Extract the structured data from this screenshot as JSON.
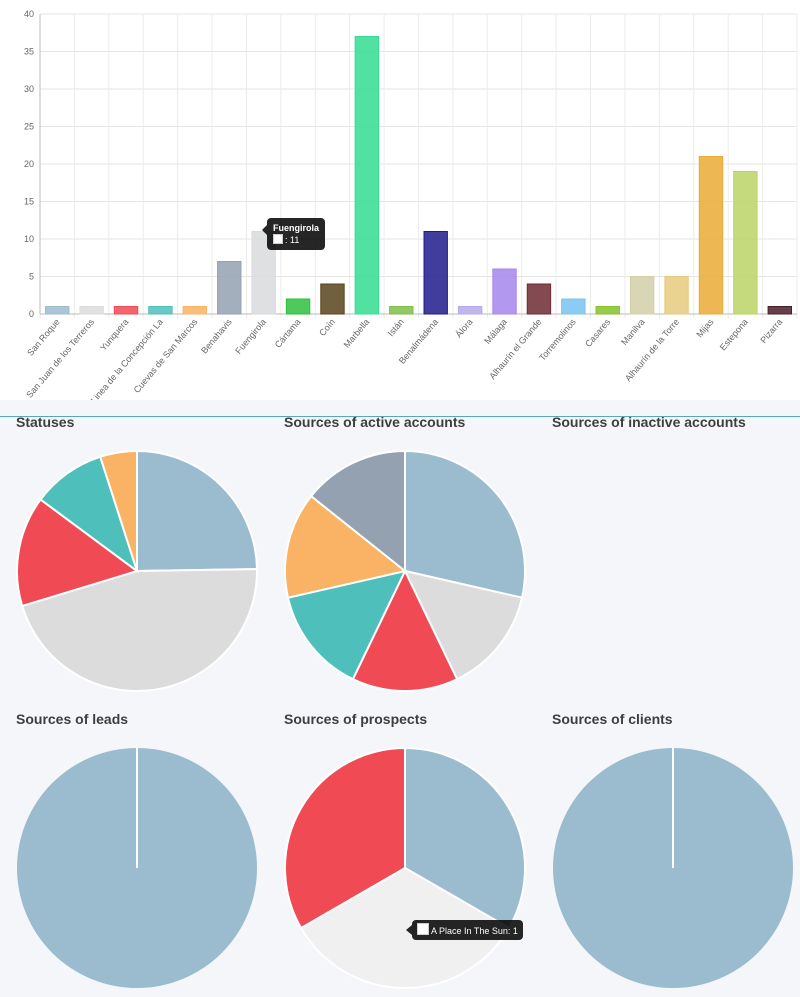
{
  "chart_data": [
    {
      "type": "bar",
      "title": "",
      "categories": [
        "San Roque",
        "San Juan de los Terreros",
        "Yunquera",
        "Linea de la Concepción La",
        "Cuevas de San Marcos",
        "Benahavis",
        "Fuengirola",
        "Cártama",
        "Coín",
        "Marbella",
        "Istán",
        "Benalmádena",
        "Álora",
        "Málaga",
        "Alhaurín el Grande",
        "Torremolinos",
        "Casares",
        "Manilva",
        "Alhaurín de la Torre",
        "Mijas",
        "Estepona",
        "Pizarra"
      ],
      "values": [
        1,
        1,
        1,
        1,
        1,
        7,
        11,
        2,
        4,
        37,
        1,
        11,
        1,
        6,
        4,
        2,
        1,
        5,
        5,
        21,
        19,
        1
      ],
      "colors": [
        "#9bbccf",
        "#dcdcdc",
        "#f04a54",
        "#4fbfbb",
        "#fab264",
        "#93a1b1",
        "#d8dadd",
        "#2fbf3f",
        "#59431b",
        "#33dd91",
        "#7fbe4a",
        "#1e1b8c",
        "#b7a9ec",
        "#a586ec",
        "#6e2a33",
        "#78c3f0",
        "#86c12c",
        "#d2cfa9",
        "#e6ca7c",
        "#eaab35",
        "#bad465",
        "#4a1f2c"
      ],
      "ylim": [
        0,
        40
      ],
      "yticks": [
        0,
        5,
        10,
        15,
        20,
        25,
        30,
        35,
        40
      ],
      "grid": true,
      "tooltip": {
        "title": "Fuengirola",
        "label": ": 11"
      }
    },
    {
      "type": "pie",
      "title": "Statuses",
      "values": [
        25,
        46,
        15,
        10,
        5
      ],
      "colors": [
        "#9bbccf",
        "#dcdcdc",
        "#f04a54",
        "#4fbfbb",
        "#fab264"
      ]
    },
    {
      "type": "pie",
      "title": "Sources of active accounts",
      "values": [
        2,
        1,
        1,
        1,
        1,
        1
      ],
      "colors": [
        "#9bbccf",
        "#dcdcdc",
        "#f04a54",
        "#4fbfbb",
        "#fab264",
        "#93a1b1"
      ]
    },
    {
      "type": "pie",
      "title": "Sources of inactive accounts",
      "values": [],
      "colors": []
    },
    {
      "type": "pie",
      "title": "Sources of leads",
      "values": [
        1
      ],
      "colors": [
        "#9bbccf"
      ]
    },
    {
      "type": "pie",
      "title": "Sources of prospects",
      "values": [
        1,
        1,
        1
      ],
      "colors": [
        "#9bbccf",
        "#f0f0f0",
        "#f04a54"
      ],
      "tooltip": {
        "label": "A Place In The Sun: 1"
      }
    },
    {
      "type": "pie",
      "title": "Sources of clients",
      "values": [
        1
      ],
      "colors": [
        "#9bbccf"
      ]
    }
  ]
}
